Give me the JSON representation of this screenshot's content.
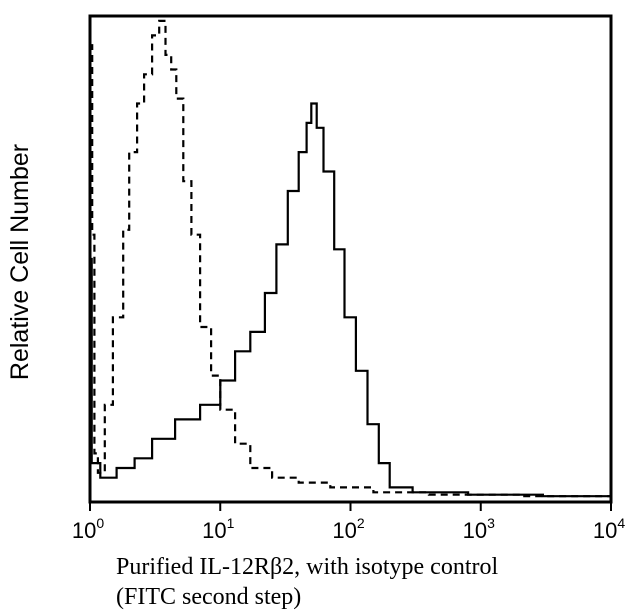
{
  "chart_data": {
    "type": "line",
    "ylabel": "Relative Cell Number",
    "xlabel_lines": [
      "Purified IL-12Rβ2, with isotype control",
      "(FITC second step)"
    ],
    "x_scale": "log",
    "xlim": [
      1,
      10000
    ],
    "ylim": [
      0,
      1.0
    ],
    "x_ticks": [
      {
        "base": "10",
        "exp": "0",
        "value": 1
      },
      {
        "base": "10",
        "exp": "1",
        "value": 10
      },
      {
        "base": "10",
        "exp": "2",
        "value": 100
      },
      {
        "base": "10",
        "exp": "3",
        "value": 1000
      },
      {
        "base": "10",
        "exp": "4",
        "value": 10000
      }
    ],
    "grid": false,
    "legend": "none",
    "series": [
      {
        "style": "dashed",
        "points": [
          [
            1.0,
            0.94
          ],
          [
            1.04,
            0.55
          ],
          [
            1.08,
            0.1
          ],
          [
            1.15,
            0.06
          ],
          [
            1.3,
            0.2
          ],
          [
            1.5,
            0.38
          ],
          [
            1.8,
            0.56
          ],
          [
            2.0,
            0.72
          ],
          [
            2.3,
            0.82
          ],
          [
            2.6,
            0.88
          ],
          [
            3.0,
            0.96
          ],
          [
            3.4,
            0.99
          ],
          [
            3.8,
            0.92
          ],
          [
            4.2,
            0.89
          ],
          [
            4.6,
            0.83
          ],
          [
            5.2,
            0.66
          ],
          [
            6.0,
            0.55
          ],
          [
            7.0,
            0.36
          ],
          [
            8.5,
            0.26
          ],
          [
            10,
            0.19
          ],
          [
            13,
            0.12
          ],
          [
            17,
            0.07
          ],
          [
            25,
            0.05
          ],
          [
            40,
            0.04
          ],
          [
            70,
            0.03
          ],
          [
            150,
            0.02
          ],
          [
            400,
            0.015
          ],
          [
            2000,
            0.012
          ],
          [
            10000,
            0.01
          ]
        ]
      },
      {
        "style": "solid",
        "points": [
          [
            1.0,
            0.5
          ],
          [
            1.03,
            0.08
          ],
          [
            1.2,
            0.05
          ],
          [
            1.6,
            0.07
          ],
          [
            2.2,
            0.09
          ],
          [
            3.0,
            0.13
          ],
          [
            4.5,
            0.17
          ],
          [
            7.0,
            0.2
          ],
          [
            10,
            0.25
          ],
          [
            13,
            0.31
          ],
          [
            17,
            0.35
          ],
          [
            22,
            0.43
          ],
          [
            27,
            0.53
          ],
          [
            33,
            0.64
          ],
          [
            40,
            0.72
          ],
          [
            46,
            0.78
          ],
          [
            50,
            0.82
          ],
          [
            55,
            0.77
          ],
          [
            62,
            0.68
          ],
          [
            75,
            0.52
          ],
          [
            90,
            0.38
          ],
          [
            110,
            0.27
          ],
          [
            135,
            0.16
          ],
          [
            165,
            0.08
          ],
          [
            200,
            0.03
          ],
          [
            300,
            0.02
          ],
          [
            800,
            0.015
          ],
          [
            3000,
            0.012
          ],
          [
            10000,
            0.01
          ]
        ]
      }
    ]
  }
}
